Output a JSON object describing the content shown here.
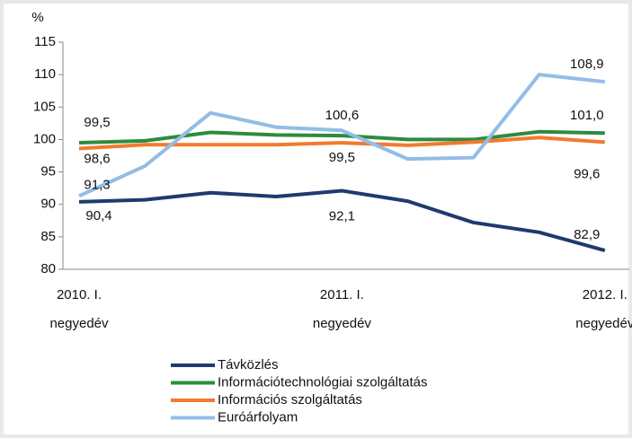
{
  "chart_data": {
    "type": "line",
    "y_label": "%",
    "categories": [
      "2010. I. negyedév",
      null,
      null,
      null,
      "2011. I. negyedév",
      null,
      null,
      null,
      "2012. I. negyedév"
    ],
    "ylim": [
      80,
      115
    ],
    "yticks": [
      80,
      85,
      90,
      95,
      100,
      105,
      110,
      115
    ],
    "grid": false,
    "legend": "bottom",
    "series": [
      {
        "name": "Távközlés",
        "color": "#1f3a6e",
        "values": [
          90.4,
          90.7,
          91.8,
          91.2,
          92.1,
          90.5,
          87.2,
          85.7,
          82.9
        ],
        "value_labels": [
          "90,4",
          null,
          null,
          null,
          "92,1",
          null,
          null,
          null,
          "82,9"
        ]
      },
      {
        "name": "Információtechnológiai szolgáltatás",
        "color": "#2e8b3e",
        "values": [
          99.5,
          99.8,
          101.1,
          100.7,
          100.6,
          100.0,
          100.0,
          101.2,
          101.0
        ],
        "value_labels": [
          "99,5",
          null,
          null,
          null,
          "100,6",
          null,
          null,
          null,
          "101,0"
        ]
      },
      {
        "name": "Információs szolgáltatás",
        "color": "#f07b2f",
        "values": [
          98.6,
          99.2,
          99.2,
          99.2,
          99.5,
          99.1,
          99.6,
          100.3,
          99.6
        ],
        "value_labels": [
          "98,6",
          null,
          null,
          null,
          "99,5",
          null,
          null,
          null,
          "99,6"
        ]
      },
      {
        "name": "Euróárfolyam",
        "color": "#92bde6",
        "values": [
          91.3,
          95.9,
          104.1,
          101.9,
          101.4,
          97.0,
          97.2,
          110.0,
          108.9
        ],
        "value_labels": [
          "91,3",
          null,
          null,
          null,
          null,
          null,
          null,
          null,
          "108,9"
        ]
      }
    ]
  }
}
